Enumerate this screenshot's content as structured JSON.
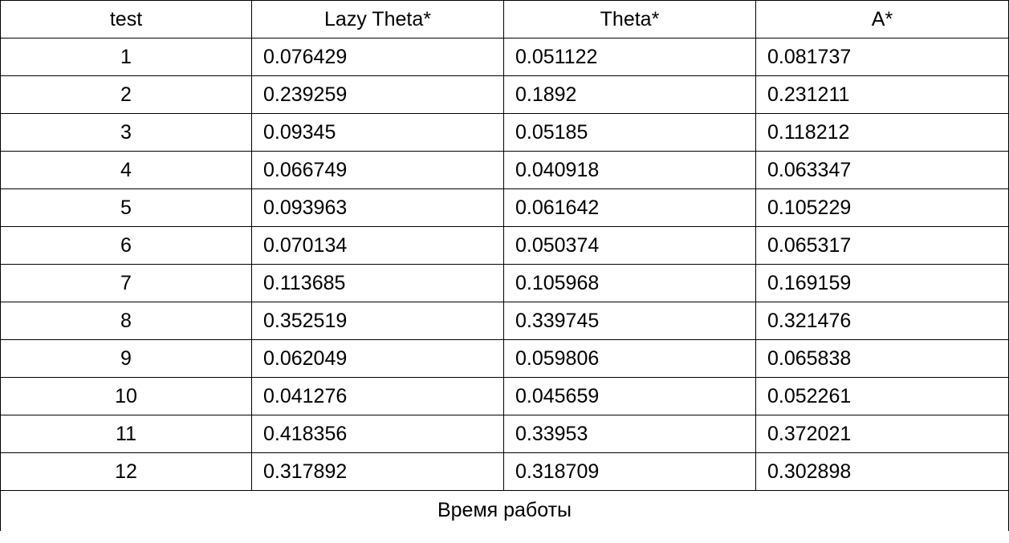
{
  "table": {
    "headers": [
      "test",
      "Lazy Theta*",
      "Theta*",
      "A*"
    ],
    "rows": [
      {
        "test": "1",
        "values": [
          "0.076429",
          "0.051122",
          "0.081737"
        ]
      },
      {
        "test": "2",
        "values": [
          "0.239259",
          "0.1892",
          "0.231211"
        ]
      },
      {
        "test": "3",
        "values": [
          "0.09345",
          "0.05185",
          "0.118212"
        ]
      },
      {
        "test": "4",
        "values": [
          "0.066749",
          "0.040918",
          "0.063347"
        ]
      },
      {
        "test": "5",
        "values": [
          "0.093963",
          "0.061642",
          "0.105229"
        ]
      },
      {
        "test": "6",
        "values": [
          "0.070134",
          "0.050374",
          "0.065317"
        ]
      },
      {
        "test": "7",
        "values": [
          "0.113685",
          "0.105968",
          "0.169159"
        ]
      },
      {
        "test": "8",
        "values": [
          "0.352519",
          "0.339745",
          "0.321476"
        ]
      },
      {
        "test": "9",
        "values": [
          "0.062049",
          "0.059806",
          "0.065838"
        ]
      },
      {
        "test": "10",
        "values": [
          "0.041276",
          "0.045659",
          "0.052261"
        ]
      },
      {
        "test": "11",
        "values": [
          "0.418356",
          "0.33953",
          "0.372021"
        ]
      },
      {
        "test": "12",
        "values": [
          "0.317892",
          "0.318709",
          "0.302898"
        ]
      }
    ],
    "caption": "Время работы"
  }
}
